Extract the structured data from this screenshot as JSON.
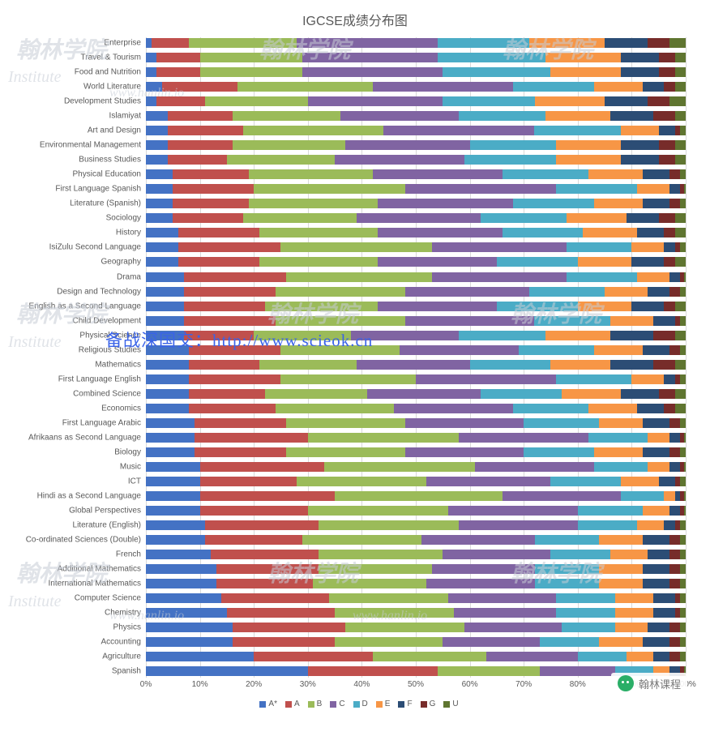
{
  "chart": {
    "type": "stacked-bar-100",
    "title": "IGCSE成绩分布图",
    "title_fontsize": 16,
    "title_color": "#595959",
    "label_fontsize": 10,
    "label_color": "#595959",
    "background_color": "#ffffff",
    "grid_color": "#d9d9d9",
    "xlim": [
      0,
      100
    ],
    "xtick_step": 10,
    "xtick_labels": [
      "0%",
      "10%",
      "20%",
      "30%",
      "40%",
      "50%",
      "60%",
      "70%",
      "80%",
      "90%",
      "100%"
    ],
    "grades": [
      "A*",
      "A",
      "B",
      "C",
      "D",
      "E",
      "F",
      "G",
      "U"
    ],
    "grade_colors": [
      "#4472c4",
      "#c0504d",
      "#9bbb59",
      "#8064a2",
      "#4bacc6",
      "#f79646",
      "#2c4d75",
      "#772c2a",
      "#5f7530"
    ],
    "subjects": [
      {
        "name": "Enterprise",
        "values": [
          1,
          7,
          20,
          26,
          17,
          14,
          8,
          4,
          3
        ]
      },
      {
        "name": "Travel & Tourism",
        "values": [
          2,
          8,
          19,
          25,
          20,
          14,
          7,
          3,
          2
        ]
      },
      {
        "name": "Food and Nutrition",
        "values": [
          2,
          8,
          19,
          26,
          20,
          13,
          7,
          3,
          2
        ]
      },
      {
        "name": "World Literature",
        "values": [
          3,
          14,
          25,
          26,
          15,
          9,
          4,
          2,
          2
        ]
      },
      {
        "name": "Development Studies",
        "values": [
          2,
          9,
          19,
          25,
          17,
          13,
          8,
          4,
          3
        ]
      },
      {
        "name": "Islamiyat",
        "values": [
          4,
          12,
          20,
          22,
          16,
          12,
          8,
          4,
          2
        ]
      },
      {
        "name": "Art and Design",
        "values": [
          4,
          14,
          26,
          28,
          16,
          7,
          3,
          1,
          1
        ]
      },
      {
        "name": "Environmental Management",
        "values": [
          4,
          12,
          21,
          23,
          16,
          12,
          7,
          3,
          2
        ]
      },
      {
        "name": "Business Studies",
        "values": [
          4,
          11,
          20,
          24,
          17,
          12,
          7,
          3,
          2
        ]
      },
      {
        "name": "Physical Education",
        "values": [
          5,
          14,
          23,
          24,
          16,
          10,
          5,
          2,
          1
        ]
      },
      {
        "name": "First Language Spanish",
        "values": [
          5,
          15,
          28,
          28,
          15,
          6,
          2,
          0.7,
          0.3
        ]
      },
      {
        "name": "Literature (Spanish)",
        "values": [
          5,
          14,
          24,
          25,
          15,
          9,
          5,
          2,
          1
        ]
      },
      {
        "name": "Sociology",
        "values": [
          5,
          13,
          21,
          23,
          16,
          11,
          6,
          3,
          2
        ]
      },
      {
        "name": "History",
        "values": [
          6,
          15,
          22,
          23,
          15,
          10,
          5,
          2,
          2
        ]
      },
      {
        "name": "IsiZulu Second Language",
        "values": [
          6,
          19,
          28,
          25,
          12,
          6,
          2,
          1,
          1
        ]
      },
      {
        "name": "Geography",
        "values": [
          6,
          15,
          22,
          22,
          15,
          10,
          6,
          2,
          2
        ]
      },
      {
        "name": "Drama",
        "values": [
          7,
          19,
          27,
          25,
          13,
          6,
          2,
          0.7,
          0.3
        ]
      },
      {
        "name": "Design and Technology",
        "values": [
          7,
          17,
          24,
          23,
          14,
          8,
          4,
          2,
          1
        ]
      },
      {
        "name": "English as a Second Language",
        "values": [
          7,
          15,
          21,
          22,
          15,
          10,
          6,
          2,
          2
        ]
      },
      {
        "name": "Child Development",
        "values": [
          7,
          17,
          24,
          24,
          14,
          8,
          4,
          1,
          1
        ]
      },
      {
        "name": "Physical Science",
        "values": [
          7,
          13,
          18,
          20,
          16,
          12,
          8,
          4,
          2
        ]
      },
      {
        "name": "Religious Studies",
        "values": [
          8,
          17,
          22,
          22,
          14,
          9,
          5,
          2,
          1
        ]
      },
      {
        "name": "Mathematics",
        "values": [
          8,
          13,
          18,
          21,
          15,
          11,
          8,
          4,
          2
        ]
      },
      {
        "name": "First Language English",
        "values": [
          8,
          17,
          25,
          26,
          14,
          6,
          2,
          1,
          1
        ]
      },
      {
        "name": "Combined Science",
        "values": [
          8,
          14,
          19,
          21,
          15,
          11,
          7,
          3,
          2
        ]
      },
      {
        "name": "Economics",
        "values": [
          8,
          16,
          22,
          22,
          14,
          9,
          5,
          2,
          2
        ]
      },
      {
        "name": "First Language Arabic",
        "values": [
          9,
          17,
          22,
          22,
          14,
          8,
          5,
          2,
          1
        ]
      },
      {
        "name": "Afrikaans as Second Language",
        "values": [
          9,
          21,
          28,
          24,
          11,
          4,
          2,
          0.7,
          0.3
        ]
      },
      {
        "name": "Biology",
        "values": [
          9,
          17,
          22,
          22,
          13,
          9,
          5,
          2,
          1
        ]
      },
      {
        "name": "Music",
        "values": [
          10,
          23,
          28,
          22,
          10,
          4,
          2,
          0.7,
          0.3
        ]
      },
      {
        "name": "ICT",
        "values": [
          10,
          18,
          24,
          23,
          13,
          7,
          3,
          1,
          1
        ]
      },
      {
        "name": "Hindi as a Second Language",
        "values": [
          10,
          25,
          31,
          22,
          8,
          2,
          1,
          0.7,
          0.3
        ]
      },
      {
        "name": "Global Perspectives",
        "values": [
          10,
          20,
          26,
          24,
          12,
          5,
          2,
          0.7,
          0.3
        ]
      },
      {
        "name": "Literature (English)",
        "values": [
          11,
          21,
          26,
          22,
          11,
          5,
          2,
          1,
          1
        ]
      },
      {
        "name": "Co-ordinated Sciences (Double)",
        "values": [
          11,
          18,
          22,
          21,
          12,
          8,
          5,
          2,
          1
        ]
      },
      {
        "name": "French",
        "values": [
          12,
          20,
          23,
          20,
          11,
          7,
          4,
          2,
          1
        ]
      },
      {
        "name": "Additional Mathematics",
        "values": [
          13,
          19,
          21,
          19,
          12,
          8,
          5,
          2,
          1
        ]
      },
      {
        "name": "International Mathematics",
        "values": [
          13,
          18,
          21,
          20,
          12,
          8,
          5,
          2,
          1
        ]
      },
      {
        "name": "Computer Science",
        "values": [
          14,
          20,
          22,
          20,
          11,
          7,
          4,
          1,
          1
        ]
      },
      {
        "name": "Chemistry",
        "values": [
          15,
          20,
          22,
          19,
          11,
          7,
          4,
          1,
          1
        ]
      },
      {
        "name": "Physics",
        "values": [
          16,
          21,
          22,
          18,
          10,
          6,
          4,
          2,
          1
        ]
      },
      {
        "name": "Accounting",
        "values": [
          16,
          19,
          20,
          18,
          11,
          8,
          5,
          2,
          1
        ]
      },
      {
        "name": "Agriculture",
        "values": [
          20,
          22,
          21,
          17,
          9,
          5,
          3,
          2,
          1
        ]
      },
      {
        "name": "Spanish",
        "values": [
          30,
          24,
          19,
          14,
          7,
          3,
          2,
          0.7,
          0.3
        ]
      }
    ]
  },
  "watermarks": {
    "brand_cn": "翰林学院",
    "brand_en1": "Institute",
    "brand_en2": "www.hanlin.io",
    "overlay_url": "备战深国交：http://www.scieok.cn"
  },
  "badge": {
    "label": "翰林课程"
  }
}
